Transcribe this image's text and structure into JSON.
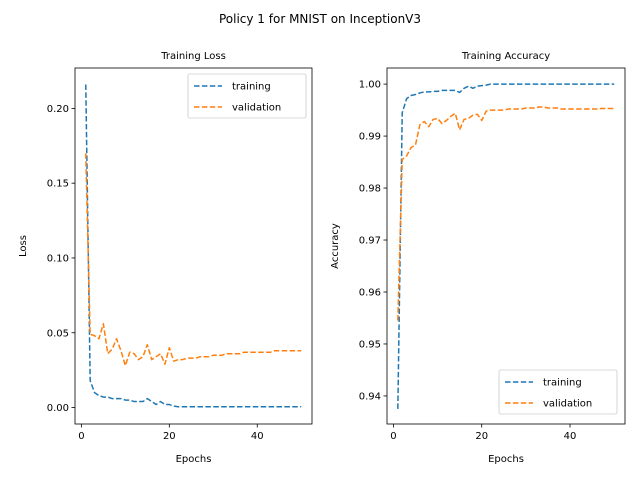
{
  "figure": {
    "title": "Policy 1 for MNIST on InceptionV3"
  },
  "colors": {
    "training": "#1f77b4",
    "validation": "#ff7f0e"
  },
  "chart_data": [
    {
      "type": "line",
      "title": "Training Loss",
      "xlabel": "Epochs",
      "ylabel": "Loss",
      "xlim": [
        -1.45,
        52.45
      ],
      "ylim": [
        -0.011,
        0.227
      ],
      "xticks": [
        0,
        20,
        40
      ],
      "yticks": [
        0.0,
        0.05,
        0.1,
        0.15,
        0.2
      ],
      "ytick_labels": [
        "0.00",
        "0.05",
        "0.10",
        "0.15",
        "0.20"
      ],
      "legend_loc": "upper right",
      "x": [
        1,
        2,
        3,
        4,
        5,
        6,
        7,
        8,
        9,
        10,
        11,
        12,
        13,
        14,
        15,
        16,
        17,
        18,
        19,
        20,
        21,
        22,
        23,
        24,
        25,
        26,
        27,
        28,
        29,
        30,
        31,
        32,
        33,
        34,
        35,
        36,
        37,
        38,
        39,
        40,
        41,
        42,
        43,
        44,
        45,
        46,
        47,
        48,
        49,
        50
      ],
      "series": [
        {
          "name": "training",
          "color": "#1f77b4",
          "values": [
            0.216,
            0.018,
            0.01,
            0.008,
            0.007,
            0.007,
            0.006,
            0.006,
            0.006,
            0.005,
            0.005,
            0.004,
            0.004,
            0.004,
            0.006,
            0.004,
            0.002,
            0.004,
            0.002,
            0.002,
            0.001,
            0.0005,
            0.0005,
            0.0005,
            0.0005,
            0.0005,
            0.0005,
            0.0005,
            0.0005,
            0.0005,
            0.0005,
            0.0005,
            0.0005,
            0.0005,
            0.0005,
            0.0005,
            0.0005,
            0.0005,
            0.0005,
            0.0005,
            0.0005,
            0.0005,
            0.0005,
            0.0005,
            0.0005,
            0.0005,
            0.0005,
            0.0005,
            0.0005,
            0.0005
          ]
        },
        {
          "name": "validation",
          "color": "#ff7f0e",
          "values": [
            0.17,
            0.049,
            0.048,
            0.046,
            0.056,
            0.036,
            0.039,
            0.046,
            0.038,
            0.028,
            0.037,
            0.036,
            0.032,
            0.034,
            0.042,
            0.032,
            0.034,
            0.036,
            0.029,
            0.04,
            0.031,
            0.032,
            0.032,
            0.033,
            0.033,
            0.033,
            0.034,
            0.034,
            0.034,
            0.035,
            0.035,
            0.035,
            0.036,
            0.036,
            0.036,
            0.036,
            0.037,
            0.037,
            0.037,
            0.037,
            0.037,
            0.037,
            0.037,
            0.038,
            0.038,
            0.038,
            0.038,
            0.038,
            0.038,
            0.038
          ]
        }
      ]
    },
    {
      "type": "line",
      "title": "Training Accuracy",
      "xlabel": "Epochs",
      "ylabel": "Accuracy",
      "xlim": [
        -1.45,
        52.45
      ],
      "ylim": [
        0.9346,
        1.0031
      ],
      "xticks": [
        0,
        20,
        40
      ],
      "yticks": [
        0.94,
        0.95,
        0.96,
        0.97,
        0.98,
        0.99,
        1.0
      ],
      "ytick_labels": [
        "0.94",
        "0.95",
        "0.96",
        "0.97",
        "0.98",
        "0.99",
        "1.00"
      ],
      "legend_loc": "lower right",
      "x": [
        1,
        2,
        3,
        4,
        5,
        6,
        7,
        8,
        9,
        10,
        11,
        12,
        13,
        14,
        15,
        16,
        17,
        18,
        19,
        20,
        21,
        22,
        23,
        24,
        25,
        26,
        27,
        28,
        29,
        30,
        31,
        32,
        33,
        34,
        35,
        36,
        37,
        38,
        39,
        40,
        41,
        42,
        43,
        44,
        45,
        46,
        47,
        48,
        49,
        50
      ],
      "series": [
        {
          "name": "training",
          "color": "#1f77b4",
          "values": [
            0.9375,
            0.9945,
            0.9972,
            0.9978,
            0.998,
            0.9983,
            0.9985,
            0.9985,
            0.9986,
            0.9986,
            0.9988,
            0.9988,
            0.9988,
            0.9988,
            0.9984,
            0.9992,
            0.9996,
            0.9992,
            0.9996,
            0.9997,
            0.9998,
            1.0,
            1.0,
            1.0,
            1.0,
            1.0,
            1.0,
            1.0,
            1.0,
            1.0,
            1.0,
            1.0,
            1.0,
            1.0,
            1.0,
            1.0,
            1.0,
            1.0,
            1.0,
            1.0,
            1.0,
            1.0,
            1.0,
            1.0,
            1.0,
            1.0,
            1.0,
            1.0,
            1.0,
            1.0
          ]
        },
        {
          "name": "validation",
          "color": "#ff7f0e",
          "values": [
            0.9545,
            0.9855,
            0.9862,
            0.9878,
            0.9883,
            0.9922,
            0.9928,
            0.9918,
            0.9932,
            0.9934,
            0.9924,
            0.993,
            0.9938,
            0.9944,
            0.9912,
            0.9932,
            0.9934,
            0.994,
            0.9942,
            0.993,
            0.9948,
            0.995,
            0.995,
            0.995,
            0.995,
            0.9952,
            0.9952,
            0.9952,
            0.9952,
            0.9954,
            0.9954,
            0.9954,
            0.9956,
            0.9956,
            0.9954,
            0.9954,
            0.9954,
            0.9952,
            0.9952,
            0.9952,
            0.9952,
            0.9952,
            0.9952,
            0.9952,
            0.9952,
            0.9952,
            0.9953,
            0.9953,
            0.9953,
            0.9953
          ]
        }
      ]
    }
  ]
}
